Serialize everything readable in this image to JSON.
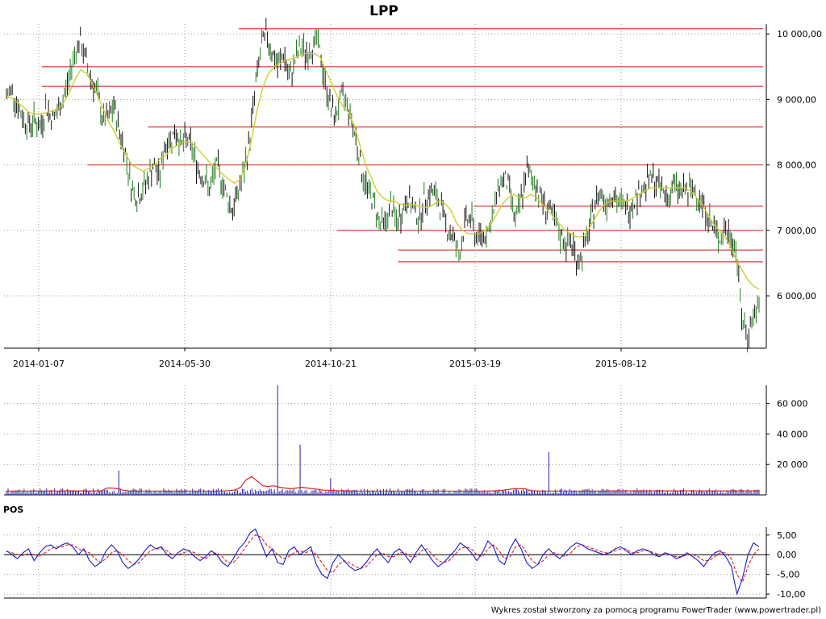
{
  "chart_data": [
    {
      "type": "line",
      "subtype": "price_ohlc_bars",
      "title": "LPP",
      "x_tick_labels": [
        "2014-01-07",
        "2014-05-30",
        "2014-10-21",
        "2015-03-19",
        "2015-08-12"
      ],
      "y_ticks": [
        6000,
        7000,
        8000,
        9000,
        10000
      ],
      "y_tick_labels": [
        "6 000,00",
        "7 000,00",
        "8 000,00",
        "9 000,00",
        "10 000,00"
      ],
      "ylim": [
        5200,
        10150
      ],
      "grid": true,
      "series": [
        {
          "kind": "close_bars",
          "color": "#1f7a1f",
          "values": [
            9050,
            9150,
            8900,
            8700,
            8600,
            8700,
            8550,
            8900,
            8700,
            8800,
            9000,
            9300,
            9700,
            9900,
            9600,
            9300,
            9100,
            8700,
            8700,
            8900,
            8500,
            8200,
            7700,
            7500,
            7600,
            7800,
            8000,
            7800,
            8300,
            8400,
            8500,
            8300,
            8400,
            8200,
            7900,
            7800,
            7600,
            8000,
            7800,
            7500,
            7300,
            7600,
            7900,
            8400,
            9200,
            9800,
            10000,
            9700,
            9500,
            9700,
            9300,
            9600,
            9800,
            9700,
            9800,
            9900,
            9400,
            9000,
            8700,
            9000,
            9000,
            8700,
            8300,
            7800,
            7600,
            7400,
            7100,
            7100,
            7400,
            7100,
            7300,
            7500,
            7300,
            7200,
            7500,
            7600,
            7500,
            7300,
            7000,
            6900,
            6600,
            7100,
            7200,
            6900,
            6900,
            7000,
            7200,
            7700,
            7800,
            7600,
            7100,
            7500,
            7900,
            7800,
            7600,
            7400,
            7300,
            7100,
            6900,
            6800,
            6800,
            6500,
            6700,
            7000,
            7400,
            7600,
            7400,
            7600,
            7400,
            7400,
            7300,
            7500,
            7600,
            7700,
            7800,
            7700,
            7600,
            7500,
            7700,
            7600,
            7600,
            7600,
            7600,
            7400,
            7200,
            7000,
            6900,
            7000,
            6900,
            6700,
            5600,
            5400,
            5700,
            5800
          ]
        },
        {
          "kind": "moving_average",
          "color": "#cccc22",
          "values": [
            9050,
            9020,
            8950,
            8880,
            8800,
            8780,
            8780,
            8800,
            8820,
            8850,
            8950,
            9100,
            9300,
            9450,
            9400,
            9250,
            9050,
            8850,
            8650,
            8500,
            8300,
            8150,
            8000,
            7950,
            7900,
            7950,
            8000,
            8100,
            8150,
            8250,
            8300,
            8350,
            8350,
            8300,
            8200,
            8100,
            8000,
            7950,
            7850,
            7780,
            7720,
            7780,
            8000,
            8400,
            8850,
            9200,
            9400,
            9500,
            9550,
            9600,
            9620,
            9650,
            9700,
            9700,
            9700,
            9650,
            9450,
            9250,
            9050,
            8900,
            8800,
            8600,
            8300,
            8000,
            7800,
            7600,
            7500,
            7450,
            7450,
            7400,
            7380,
            7400,
            7380,
            7350,
            7350,
            7400,
            7450,
            7400,
            7300,
            7100,
            7000,
            6950,
            6950,
            6950,
            7000,
            7100,
            7250,
            7400,
            7500,
            7550,
            7500,
            7500,
            7550,
            7500,
            7400,
            7300,
            7200,
            7100,
            7000,
            6950,
            6900,
            6900,
            7000,
            7150,
            7300,
            7400,
            7450,
            7450,
            7450,
            7450,
            7500,
            7550,
            7600,
            7650,
            7650,
            7650,
            7650,
            7650,
            7650,
            7650,
            7600,
            7500,
            7400,
            7250,
            7100,
            7000,
            6900,
            6750,
            6550,
            6400,
            6250,
            6150,
            6100
          ]
        }
      ],
      "horizontal_lines": [
        {
          "value": 10080,
          "x_start": 0.31
        },
        {
          "value": 9500,
          "x_start": 0.05
        },
        {
          "value": 9200,
          "x_start": 0.05
        },
        {
          "value": 8580,
          "x_start": 0.19
        },
        {
          "value": 8000,
          "x_start": 0.11
        },
        {
          "value": 7370,
          "x_start": 0.62
        },
        {
          "value": 7000,
          "x_start": 0.44
        },
        {
          "value": 6700,
          "x_start": 0.52
        },
        {
          "value": 6520,
          "x_start": 0.52
        }
      ],
      "line_color": "#e05050"
    },
    {
      "type": "bar",
      "subtype": "volume",
      "y_ticks": [
        20000,
        40000,
        60000
      ],
      "y_tick_labels": [
        "20 000",
        "40 000",
        "60 000"
      ],
      "ylim": [
        0,
        72000
      ],
      "grid": true,
      "series": [
        {
          "kind": "volume_bars",
          "color": "#2020b0",
          "baseline": 2500,
          "spikes": [
            {
              "position": 0.15,
              "value": 16000
            },
            {
              "position": 0.36,
              "value": 72000
            },
            {
              "position": 0.39,
              "value": 33000
            },
            {
              "position": 0.43,
              "value": 11000
            },
            {
              "position": 0.72,
              "value": 28000
            }
          ]
        },
        {
          "kind": "volume_average",
          "color": "#dd2222",
          "values": [
            2500,
            2500,
            2600,
            2500,
            2500,
            2600,
            2500,
            2500,
            2600,
            2500,
            2600,
            2700,
            2600,
            2500,
            2600,
            2500,
            2600,
            2600,
            4500,
            4500,
            4000,
            3000,
            2600,
            2500,
            2500,
            2500,
            2500,
            2500,
            2500,
            2500,
            2500,
            2500,
            2500,
            2500,
            2500,
            2500,
            2500,
            2500,
            2500,
            2600,
            2800,
            3200,
            5000,
            10000,
            12000,
            9000,
            6000,
            5500,
            6000,
            5000,
            4500,
            4000,
            4500,
            5000,
            4500,
            4000,
            3500,
            3000,
            3000,
            2800,
            2600,
            2600,
            2600,
            2500,
            2500,
            2500,
            2500,
            2500,
            2500,
            2500,
            2500,
            2500,
            2500,
            2500,
            2500,
            2500,
            2500,
            2500,
            2500,
            2500,
            2500,
            2500,
            2500,
            2500,
            2500,
            2500,
            2500,
            2600,
            2600,
            3000,
            3500,
            4000,
            4000,
            4000,
            2800,
            2600,
            2500,
            2500,
            2500,
            2500,
            2500,
            2500,
            2500,
            2500,
            2500,
            2500,
            2500,
            2500,
            2600,
            2600,
            2600,
            2600,
            2600,
            2600,
            2600,
            2600,
            2600,
            2600,
            2600,
            2600,
            2600,
            2600,
            2600,
            2600,
            2600,
            2600,
            2600,
            2600,
            2600,
            2600,
            2600,
            2600,
            2600,
            2600,
            2600,
            2600
          ]
        }
      ]
    },
    {
      "type": "line",
      "subtype": "oscillator",
      "panel_label": "POS",
      "y_ticks": [
        -10,
        -5,
        0,
        5
      ],
      "y_tick_labels": [
        "-10,00",
        "-5,00",
        "0,00",
        "5,00"
      ],
      "ylim": [
        -11,
        7
      ],
      "grid": true,
      "series": [
        {
          "kind": "oscillator",
          "color": "#1a1acc",
          "values": [
            1.0,
            0.0,
            -1.0,
            0.5,
            1.5,
            -1.5,
            0.5,
            2.0,
            2.5,
            1.5,
            2.5,
            3.0,
            2.0,
            0.0,
            1.5,
            -1.5,
            -3.0,
            -2.0,
            1.0,
            2.5,
            1.0,
            -2.0,
            -3.5,
            -2.5,
            -1.0,
            1.0,
            2.5,
            1.5,
            2.0,
            0.0,
            -1.0,
            0.5,
            1.5,
            1.0,
            -0.5,
            -1.5,
            -0.5,
            1.0,
            0.0,
            -2.0,
            -3.0,
            -1.0,
            1.5,
            3.0,
            5.5,
            6.5,
            3.0,
            -0.5,
            1.5,
            -2.0,
            -2.5,
            1.0,
            2.0,
            0.0,
            1.0,
            2.0,
            -2.5,
            -5.0,
            -6.0,
            -2.0,
            0.0,
            -1.5,
            -3.0,
            -4.0,
            -3.5,
            -2.0,
            0.0,
            1.5,
            -0.5,
            -2.0,
            0.5,
            1.5,
            0.0,
            -2.0,
            0.5,
            2.5,
            0.5,
            -1.5,
            -3.0,
            -2.0,
            -0.5,
            1.0,
            3.0,
            2.0,
            0.5,
            -1.5,
            0.5,
            3.5,
            2.0,
            -1.5,
            -2.5,
            1.5,
            4.0,
            1.5,
            -2.0,
            -3.5,
            -2.5,
            0.0,
            1.5,
            0.0,
            -1.0,
            0.5,
            2.0,
            3.0,
            2.5,
            1.5,
            1.0,
            0.5,
            0.0,
            0.5,
            1.5,
            2.0,
            1.0,
            0.0,
            1.0,
            1.5,
            1.0,
            0.0,
            -0.5,
            0.5,
            0.0,
            -1.0,
            -0.5,
            0.5,
            -0.5,
            -1.5,
            -3.0,
            -1.0,
            0.5,
            1.0,
            -0.5,
            -3.0,
            -10.0,
            -6.0,
            0.0,
            3.0,
            2.0
          ]
        },
        {
          "kind": "signal",
          "color": "#dd2222",
          "dashed": true,
          "values": [
            0.8,
            0.5,
            0.0,
            -0.2,
            0.3,
            0.0,
            -0.3,
            0.5,
            1.5,
            2.0,
            2.0,
            2.5,
            2.5,
            1.5,
            1.0,
            0.5,
            -1.0,
            -2.0,
            -1.0,
            0.5,
            1.0,
            0.0,
            -1.5,
            -2.5,
            -2.0,
            -0.5,
            1.0,
            1.5,
            1.5,
            1.0,
            0.0,
            0.0,
            0.5,
            1.0,
            0.5,
            -0.5,
            -1.0,
            0.0,
            0.5,
            -0.5,
            -2.0,
            -2.0,
            -0.5,
            1.5,
            3.5,
            5.0,
            4.5,
            2.5,
            1.5,
            0.0,
            -1.0,
            -0.5,
            0.5,
            1.0,
            0.5,
            1.0,
            0.0,
            -2.0,
            -4.0,
            -4.5,
            -2.5,
            -1.5,
            -2.0,
            -3.0,
            -3.5,
            -3.0,
            -1.5,
            0.0,
            0.5,
            -0.5,
            -0.5,
            0.5,
            0.5,
            -0.5,
            -0.5,
            1.0,
            1.5,
            0.0,
            -1.5,
            -2.0,
            -1.5,
            0.0,
            1.5,
            2.0,
            1.5,
            0.0,
            -0.5,
            1.5,
            2.5,
            1.0,
            -1.0,
            -0.5,
            2.0,
            2.5,
            0.5,
            -1.5,
            -2.5,
            -1.5,
            0.0,
            0.5,
            0.0,
            -0.5,
            0.5,
            2.0,
            2.5,
            2.0,
            1.5,
            1.0,
            0.5,
            0.5,
            1.0,
            1.5,
            1.5,
            0.5,
            0.5,
            1.0,
            1.0,
            0.5,
            0.0,
            0.0,
            0.0,
            -0.5,
            -0.5,
            0.0,
            0.0,
            -0.5,
            -1.5,
            -1.5,
            -0.5,
            0.5,
            0.5,
            -1.0,
            -5.0,
            -7.0,
            -3.0,
            0.0,
            1.5
          ]
        }
      ]
    }
  ],
  "footer": "Wykres został stworzony za pomocą programu PowerTrader (www.powertrader.pl)"
}
